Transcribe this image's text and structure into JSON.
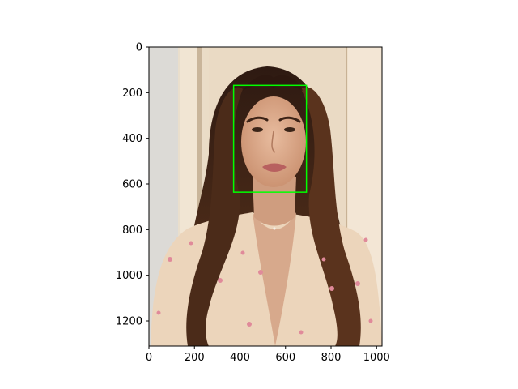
{
  "chart_data": {
    "type": "image-with-bounding-box",
    "title": "",
    "xlabel": "",
    "ylabel": "",
    "image_description": "portrait photograph of a woman with long wavy brown hair, wearing a light beige floral top",
    "image_size": {
      "width": 1024,
      "height": 1310
    },
    "xlim": [
      0,
      1024
    ],
    "ylim": [
      1310,
      0
    ],
    "x_ticks": [
      0,
      200,
      400,
      600,
      800,
      1000
    ],
    "y_ticks": [
      0,
      200,
      400,
      600,
      800,
      1000,
      1200
    ],
    "boxes": [
      {
        "name": "face",
        "x0": 372,
        "y0": 168,
        "x1": 692,
        "y1": 636,
        "color": "#00ff00"
      }
    ],
    "colors": {
      "background_wall": "#e8d9c4",
      "pillar_light": "#f3e8d8",
      "hair_dark": "#3a2116",
      "hair_mid": "#6b3f24",
      "skin": "#d9a98a",
      "top_fabric": "#eed7bf",
      "flower": "#e08a9a"
    }
  }
}
